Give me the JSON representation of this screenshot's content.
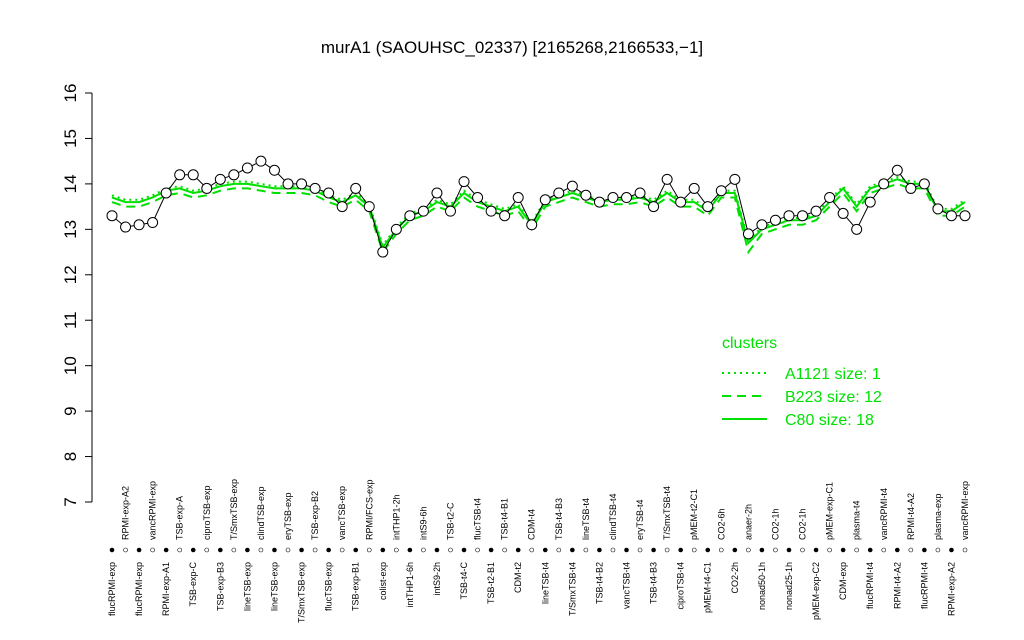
{
  "chart_data": {
    "type": "line",
    "title": "murA1 (SAOUHSC_02337) [2165268,2166533,−1]",
    "ylim": [
      7,
      16
    ],
    "yticks": [
      7,
      8,
      9,
      10,
      11,
      12,
      13,
      14,
      15,
      16
    ],
    "categories": [
      "flucRPMI-exp",
      "RPMI-exp-A2",
      "flucRPMI-exp",
      "vancRPMI-exp",
      "RPMI-exp-A1",
      "TSB-exp-A",
      "TSB-exp-C",
      "ciproTSB-exp",
      "TSB-exp-B3",
      "T/SmxTSB-exp",
      "lineTSB-exp",
      "clindTSB-exp",
      "lineTSB-exp",
      "eryTSB-exp",
      "T/SmxTSB-exp",
      "TSB-exp-B2",
      "flucTSB-exp",
      "vancTSB-exp",
      "TSB-exp-B1",
      "RPMI/FCS-exp",
      "colist-exp",
      "intTHP1-2h",
      "intTHP1-6h",
      "intS9-6h",
      "intS9-2h",
      "TSB-t2-C",
      "TSB-t4-C",
      "flucTSB-t4",
      "TSB-t2-B1",
      "TSB-t4-B1",
      "CDM-t2",
      "CDM-t4",
      "lineTSB-t4",
      "TSB-t4-B3",
      "T/SmxTSB-t4",
      "lineTSB-t4",
      "TSB-t4-B2",
      "clindTSB-t4",
      "vancTSB-t4",
      "eryTSB-t4",
      "TSB-t4-B3",
      "T/SmxTSB-t4",
      "ciproTSB-t4",
      "pMEM-t2-C1",
      "pMEM-t4-C1",
      "CO2-6h",
      "CO2-2h",
      "anaer-2h",
      "nonad50-1h",
      "CO2-1h",
      "nonad25-1h",
      "CO2-1h",
      "pMEM-exp-C2",
      "pMEM-exp-C1",
      "CDM-exp",
      "plasma-t4",
      "flucRPMI-t4",
      "vancRPMI-t4",
      "RPMI-t4-A2",
      "RPMI-t4-A2",
      "flucRPMI-t4",
      "plasma-exp",
      "RPMI-exp-A2",
      "vancRPMI-exp"
    ],
    "values": [
      13.3,
      13.05,
      13.1,
      13.15,
      13.8,
      14.2,
      14.2,
      13.9,
      14.1,
      14.2,
      14.35,
      14.5,
      14.3,
      14.0,
      14.0,
      13.9,
      13.8,
      13.5,
      13.9,
      13.5,
      12.5,
      13.0,
      13.3,
      13.4,
      13.8,
      13.4,
      14.05,
      13.7,
      13.4,
      13.3,
      13.7,
      13.1,
      13.65,
      13.8,
      13.95,
      13.75,
      13.6,
      13.7,
      13.7,
      13.8,
      13.5,
      14.1,
      13.6,
      13.9,
      13.5,
      13.85,
      14.1,
      12.9,
      13.1,
      13.2,
      13.3,
      13.3,
      13.4,
      13.7,
      13.35,
      13.0,
      13.6,
      14.0,
      14.3,
      13.9,
      14.0,
      13.45,
      13.3,
      13.3
    ],
    "legend_title": "clusters",
    "series": [
      {
        "name": "A1121 size: 1",
        "color": "#00e000",
        "dash": "dotted",
        "values": [
          13.75,
          13.65,
          13.65,
          13.75,
          13.9,
          13.95,
          13.85,
          13.9,
          14.0,
          14.05,
          14.05,
          14.0,
          13.95,
          13.95,
          13.95,
          13.9,
          13.75,
          13.65,
          13.8,
          13.55,
          12.65,
          13.05,
          13.35,
          13.45,
          13.65,
          13.55,
          13.85,
          13.65,
          13.55,
          13.45,
          13.55,
          13.15,
          13.65,
          13.75,
          13.85,
          13.75,
          13.65,
          13.7,
          13.7,
          13.75,
          13.65,
          13.85,
          13.65,
          13.65,
          13.45,
          13.85,
          13.85,
          12.75,
          13.05,
          13.15,
          13.25,
          13.25,
          13.35,
          13.65,
          13.95,
          13.55,
          13.95,
          14.05,
          14.15,
          14.05,
          14.05,
          13.45,
          13.45,
          13.65
        ]
      },
      {
        "name": "B223 size: 12",
        "color": "#00e000",
        "dash": "dashed",
        "values": [
          13.6,
          13.5,
          13.5,
          13.6,
          13.75,
          13.8,
          13.7,
          13.75,
          13.85,
          13.9,
          13.9,
          13.85,
          13.8,
          13.8,
          13.8,
          13.75,
          13.6,
          13.5,
          13.65,
          13.4,
          12.5,
          12.9,
          13.2,
          13.3,
          13.5,
          13.4,
          13.7,
          13.5,
          13.4,
          13.3,
          13.4,
          13.0,
          13.5,
          13.6,
          13.7,
          13.6,
          13.5,
          13.55,
          13.55,
          13.6,
          13.5,
          13.7,
          13.5,
          13.5,
          13.3,
          13.7,
          13.7,
          12.5,
          12.9,
          13.0,
          13.1,
          13.1,
          13.2,
          13.5,
          13.8,
          13.4,
          13.8,
          13.9,
          14.0,
          13.9,
          13.9,
          13.3,
          13.3,
          13.5
        ]
      },
      {
        "name": "C80 size: 18",
        "color": "#00e000",
        "dash": "solid",
        "values": [
          13.7,
          13.6,
          13.6,
          13.7,
          13.85,
          13.9,
          13.8,
          13.85,
          13.95,
          14.0,
          14.0,
          13.95,
          13.9,
          13.9,
          13.9,
          13.85,
          13.7,
          13.6,
          13.75,
          13.5,
          12.6,
          13.0,
          13.3,
          13.4,
          13.6,
          13.5,
          13.8,
          13.6,
          13.5,
          13.4,
          13.5,
          13.1,
          13.6,
          13.7,
          13.8,
          13.7,
          13.6,
          13.65,
          13.65,
          13.7,
          13.6,
          13.8,
          13.6,
          13.6,
          13.4,
          13.8,
          13.8,
          12.7,
          13.0,
          13.1,
          13.2,
          13.2,
          13.3,
          13.6,
          13.9,
          13.5,
          13.9,
          14.0,
          14.1,
          14.0,
          14.0,
          13.4,
          13.4,
          13.6
        ]
      }
    ]
  }
}
